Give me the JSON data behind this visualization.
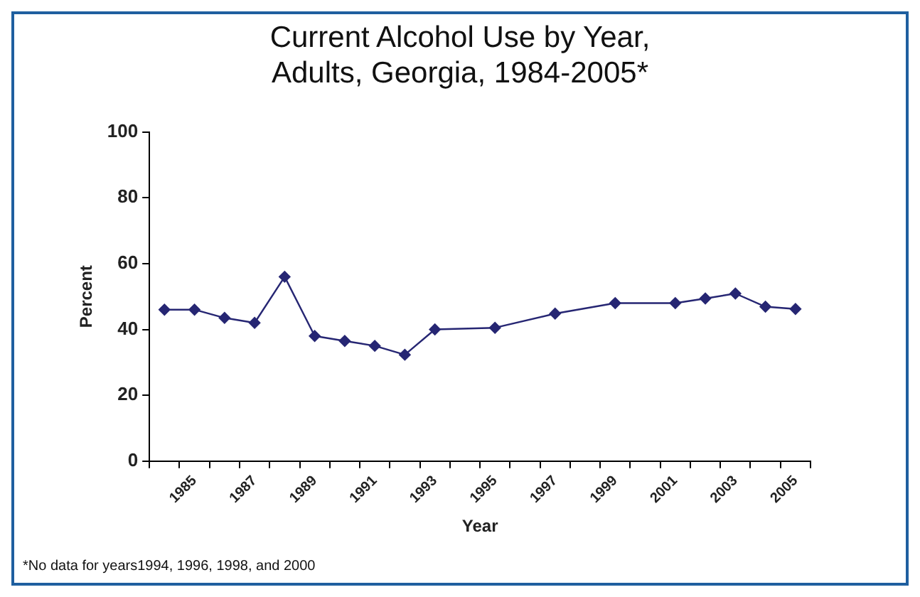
{
  "chart_data": {
    "type": "line",
    "title": "Current Alcohol Use by Year, Adults, Georgia, 1984-2005*",
    "xlabel": "Year",
    "ylabel": "Percent",
    "categories": [
      null,
      "1985",
      null,
      "1987",
      null,
      "1989",
      null,
      "1991",
      null,
      "1993",
      null,
      "1995",
      null,
      "1997",
      null,
      "1999",
      null,
      "2001",
      null,
      "2003",
      null,
      "2005"
    ],
    "series": [
      {
        "color": "#262673",
        "values": [
          46,
          46,
          43.5,
          42,
          56,
          38,
          36.5,
          35,
          32.3,
          40,
          null,
          40.5,
          null,
          44.8,
          null,
          48,
          null,
          48,
          49.4,
          50.9,
          46.9,
          46.2
        ]
      }
    ],
    "ylim": [
      0,
      100
    ],
    "yticks": [
      0,
      20,
      40,
      60,
      80,
      100
    ],
    "grid": false,
    "legend": false,
    "marker": "diamond",
    "line_style": "solid",
    "annotations": [
      "*No data for years1994, 1996, 1998, and 2000"
    ]
  }
}
